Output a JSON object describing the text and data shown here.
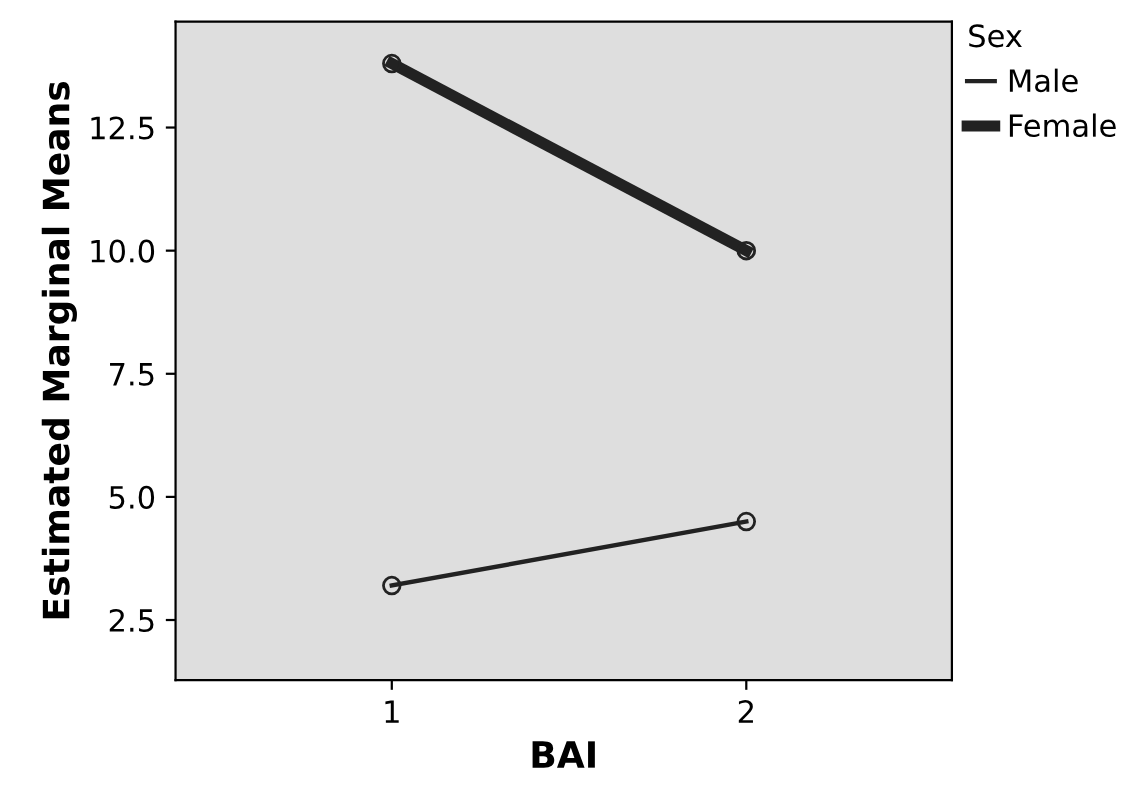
{
  "chart_data": {
    "type": "line",
    "xlabel": "BAI",
    "ylabel": "Estimated Marginal Means",
    "legend_title": "Sex",
    "x": [
      1,
      2
    ],
    "series": [
      {
        "name": "Male",
        "color": "#222222",
        "values": [
          3.2,
          4.5
        ]
      },
      {
        "name": "Female",
        "color": "#222222",
        "values": [
          13.8,
          10.0
        ]
      }
    ],
    "xlim": [
      0.39,
      2.58
    ],
    "xticks": [
      1,
      2
    ],
    "ylim": [
      1.28,
      14.65
    ],
    "yticks": [
      2.5,
      {
        "value": 5,
        "label": "5.0"
      },
      7.5,
      {
        "value": 10,
        "label": "10.0"
      },
      12.5
    ],
    "marker": "circle",
    "line_style": "solid",
    "legend": "top right",
    "grid": false
  }
}
